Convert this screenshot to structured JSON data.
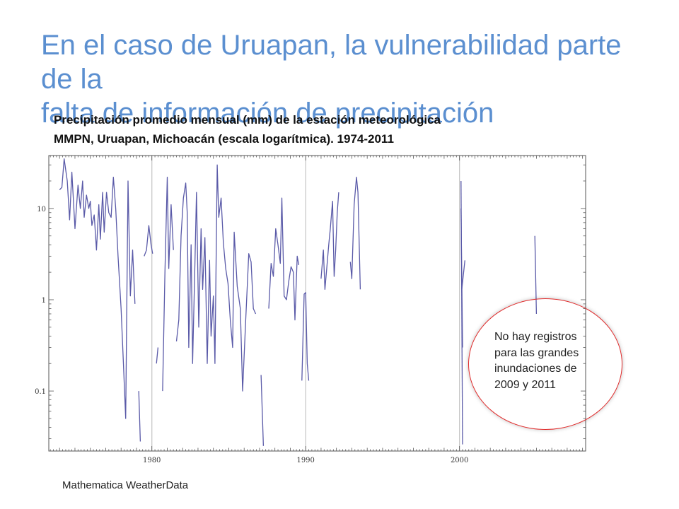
{
  "slide": {
    "title_lines": [
      "En el caso de Uruapan, la vulnerabilidad parte de la",
      "falta de información de precipitación"
    ],
    "source": "Mathematica WeatherData",
    "annotation_lines": [
      "No hay registros",
      "para las grandes",
      "inundaciones de",
      "2009 y 2011"
    ]
  },
  "chart_data": {
    "type": "line",
    "title_lines": [
      "Precipitación promedio mensual (mm) de la estación meteorológica",
      "MMPN, Uruapan, Michoacán (escala logarítmica). 1974-2011"
    ],
    "xlabel": "",
    "ylabel": "",
    "x_unit": "year",
    "y_scale": "log",
    "xlim": [
      1973.3,
      2008.2
    ],
    "ylim": [
      0.022,
      38
    ],
    "x_ticks": [
      1980,
      1990,
      2000
    ],
    "x_tick_labels": [
      "1980",
      "1990",
      "2000"
    ],
    "y_ticks": [
      0.1,
      1,
      10
    ],
    "y_tick_labels": [
      "0.1",
      "1",
      "10"
    ],
    "vertical_gridlines": [
      1980,
      1990,
      2000
    ],
    "grid": "vertical-only",
    "line_color": "#5a5aa8",
    "series": [
      {
        "segments": [
          [
            [
              1974.0,
              16
            ],
            [
              1974.15,
              17
            ],
            [
              1974.3,
              35
            ],
            [
              1974.5,
              20
            ],
            [
              1974.65,
              7.5
            ],
            [
              1974.8,
              25
            ],
            [
              1975.0,
              6
            ],
            [
              1975.2,
              18
            ],
            [
              1975.35,
              10
            ],
            [
              1975.5,
              20
            ],
            [
              1975.6,
              8
            ],
            [
              1975.75,
              14
            ],
            [
              1975.9,
              10
            ],
            [
              1976.0,
              12
            ],
            [
              1976.1,
              6.5
            ],
            [
              1976.25,
              8.5
            ],
            [
              1976.4,
              3.5
            ],
            [
              1976.55,
              11
            ],
            [
              1976.65,
              4.6
            ],
            [
              1976.8,
              15
            ],
            [
              1976.9,
              5.5
            ],
            [
              1977.05,
              15
            ],
            [
              1977.2,
              9
            ],
            [
              1977.35,
              8
            ],
            [
              1977.5,
              22
            ],
            [
              1977.65,
              10
            ],
            [
              1977.8,
              3
            ],
            [
              1978.0,
              0.8
            ],
            [
              1978.15,
              0.2
            ],
            [
              1978.3,
              0.05
            ],
            [
              1978.45,
              20
            ],
            [
              1978.6,
              1.1
            ],
            [
              1978.75,
              3.5
            ],
            [
              1978.9,
              0.9
            ]
          ],
          [
            [
              1979.15,
              0.1
            ],
            [
              1979.25,
              0.028
            ]
          ],
          [
            [
              1979.5,
              3
            ],
            [
              1979.65,
              3.5
            ],
            [
              1979.8,
              6.5
            ],
            [
              1979.95,
              4
            ],
            [
              1980.05,
              3.2
            ]
          ],
          [
            [
              1980.3,
              0.2
            ],
            [
              1980.4,
              0.3
            ]
          ],
          [
            [
              1980.7,
              0.1
            ],
            [
              1980.85,
              2
            ],
            [
              1981.0,
              22
            ],
            [
              1981.1,
              2.2
            ],
            [
              1981.25,
              11
            ],
            [
              1981.4,
              3.5
            ]
          ],
          [
            [
              1981.6,
              0.35
            ],
            [
              1981.75,
              0.6
            ],
            [
              1981.9,
              5
            ],
            [
              1982.05,
              13
            ],
            [
              1982.2,
              19
            ],
            [
              1982.3,
              9
            ],
            [
              1982.4,
              0.3
            ],
            [
              1982.55,
              4
            ],
            [
              1982.65,
              0.2
            ],
            [
              1982.8,
              2.5
            ],
            [
              1982.9,
              15
            ],
            [
              1983.05,
              0.5
            ],
            [
              1983.2,
              6
            ],
            [
              1983.3,
              1.3
            ],
            [
              1983.45,
              4.8
            ],
            [
              1983.6,
              0.2
            ],
            [
              1983.75,
              2.7
            ],
            [
              1983.85,
              0.4
            ],
            [
              1984.0,
              1.1
            ],
            [
              1984.1,
              0.2
            ],
            [
              1984.25,
              30
            ],
            [
              1984.35,
              8
            ],
            [
              1984.5,
              13
            ],
            [
              1984.65,
              4.2
            ],
            [
              1984.8,
              2.2
            ],
            [
              1984.95,
              1.5
            ],
            [
              1985.1,
              0.6
            ],
            [
              1985.25,
              0.3
            ],
            [
              1985.35,
              5.5
            ],
            [
              1985.55,
              1.4
            ],
            [
              1985.75,
              0.8
            ],
            [
              1985.9,
              0.1
            ],
            [
              1986.1,
              0.6
            ],
            [
              1986.3,
              3.2
            ],
            [
              1986.45,
              2.6
            ],
            [
              1986.6,
              0.8
            ],
            [
              1986.75,
              0.7
            ]
          ],
          [
            [
              1987.1,
              0.15
            ],
            [
              1987.25,
              0.025
            ]
          ],
          [
            [
              1987.6,
              0.8
            ],
            [
              1987.75,
              2.5
            ],
            [
              1987.9,
              1.8
            ],
            [
              1988.05,
              6
            ],
            [
              1988.2,
              4
            ],
            [
              1988.35,
              2.5
            ],
            [
              1988.45,
              13
            ],
            [
              1988.6,
              1.1
            ],
            [
              1988.75,
              1.0
            ],
            [
              1988.9,
              1.6
            ],
            [
              1989.05,
              2.3
            ],
            [
              1989.2,
              2
            ],
            [
              1989.3,
              0.6
            ],
            [
              1989.45,
              3
            ],
            [
              1989.55,
              2.4
            ]
          ],
          [
            [
              1989.75,
              0.13
            ],
            [
              1989.9,
              1.15
            ],
            [
              1990.0,
              1.2
            ],
            [
              1990.1,
              0.2
            ],
            [
              1990.2,
              0.13
            ]
          ],
          [
            [
              1991.0,
              1.7
            ],
            [
              1991.15,
              3.5
            ],
            [
              1991.25,
              1.3
            ],
            [
              1991.35,
              2
            ],
            [
              1991.5,
              4
            ],
            [
              1991.6,
              6
            ],
            [
              1991.75,
              12
            ],
            [
              1991.85,
              1.8
            ],
            [
              1991.95,
              3.5
            ],
            [
              1992.05,
              9
            ],
            [
              1992.15,
              15
            ]
          ],
          [
            [
              1992.9,
              2.6
            ],
            [
              1993.0,
              1.7
            ],
            [
              1993.15,
              11
            ],
            [
              1993.3,
              22
            ],
            [
              1993.4,
              15
            ],
            [
              1993.55,
              1.3
            ]
          ],
          [
            [
              2000.1,
              20
            ],
            [
              2000.2,
              0.026
            ]
          ],
          [
            [
              2000.1,
              10
            ],
            [
              2000.2,
              0.3
            ]
          ],
          [
            [
              2000.15,
              1.3
            ],
            [
              2000.35,
              2.7
            ]
          ],
          [
            [
              2004.9,
              5
            ],
            [
              2005.0,
              0.7
            ]
          ]
        ]
      }
    ]
  }
}
